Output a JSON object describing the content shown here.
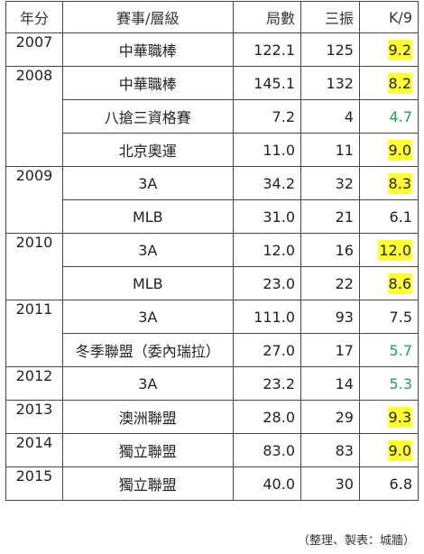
{
  "headers": {
    "year": "年分",
    "event": "賽事/層級",
    "ip": "局數",
    "so": "三振",
    "k9": "K/9"
  },
  "groups": [
    {
      "year": "2007",
      "rows": [
        {
          "event": "中華職棒",
          "ip": "122.1",
          "so": "125",
          "k9": "9.2",
          "k9_style": "highlight"
        }
      ]
    },
    {
      "year": "2008",
      "rows": [
        {
          "event": "中華職棒",
          "ip": "145.1",
          "so": "132",
          "k9": "8.2",
          "k9_style": "highlight"
        },
        {
          "event": "八搶三資格賽",
          "ip": "7.2",
          "so": "4",
          "k9": "4.7",
          "k9_style": "green"
        },
        {
          "event": "北京奧運",
          "ip": "11.0",
          "so": "11",
          "k9": "9.0",
          "k9_style": "highlight"
        }
      ]
    },
    {
      "year": "2009",
      "rows": [
        {
          "event": "3A",
          "ip": "34.2",
          "so": "32",
          "k9": "8.3",
          "k9_style": "highlight"
        },
        {
          "event": "MLB",
          "ip": "31.0",
          "so": "21",
          "k9": "6.1",
          "k9_style": "plain"
        }
      ]
    },
    {
      "year": "2010",
      "rows": [
        {
          "event": "3A",
          "ip": "12.0",
          "so": "16",
          "k9": "12.0",
          "k9_style": "highlight"
        },
        {
          "event": "MLB",
          "ip": "23.0",
          "so": "22",
          "k9": "8.6",
          "k9_style": "highlight"
        }
      ]
    },
    {
      "year": "2011",
      "rows": [
        {
          "event": "3A",
          "ip": "111.0",
          "so": "93",
          "k9": "7.5",
          "k9_style": "plain"
        },
        {
          "event": "冬季聯盟（委內瑞拉）",
          "ip": "27.0",
          "so": "17",
          "k9": "5.7",
          "k9_style": "green"
        }
      ]
    },
    {
      "year": "2012",
      "rows": [
        {
          "event": "3A",
          "ip": "23.2",
          "so": "14",
          "k9": "5.3",
          "k9_style": "green"
        }
      ]
    },
    {
      "year": "2013",
      "rows": [
        {
          "event": "澳洲聯盟",
          "ip": "28.0",
          "so": "29",
          "k9": "9.3",
          "k9_style": "highlight"
        }
      ]
    },
    {
      "year": "2014",
      "rows": [
        {
          "event": "獨立聯盟",
          "ip": "83.0",
          "so": "83",
          "k9": "9.0",
          "k9_style": "highlight"
        }
      ]
    },
    {
      "year": "2015",
      "rows": [
        {
          "event": "獨立聯盟",
          "ip": "40.0",
          "so": "30",
          "k9": "6.8",
          "k9_style": "plain"
        }
      ]
    }
  ],
  "colors": {
    "highlight": "#ffff33",
    "green": "#1fa34a"
  },
  "credit": "（整理、製表：城牆）"
}
